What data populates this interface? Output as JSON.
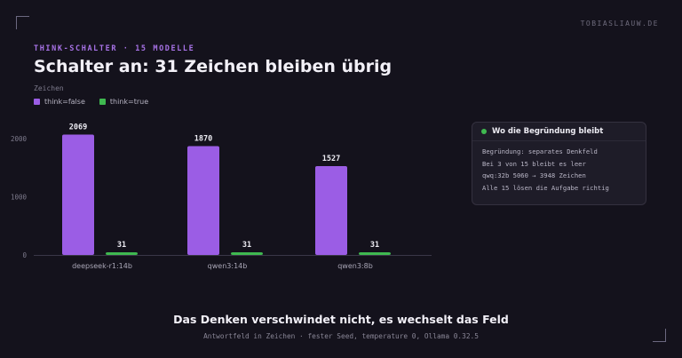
{
  "site": "TOBIASLIAUW.DE",
  "kicker": "THINK-SCHALTER · 15 MODELLE",
  "title": "Schalter an: 31 Zeichen bleiben übrig",
  "colors": {
    "purple": "#9b5de5",
    "green": "#3fb950",
    "background": "#14121c"
  },
  "chart_data": {
    "type": "bar",
    "ylabel": "Zeichen",
    "categories": [
      "deepseek-r1:14b",
      "qwen3:14b",
      "qwen3:8b"
    ],
    "series": [
      {
        "name": "think=false",
        "values": [
          2069,
          1870,
          1527
        ],
        "labels": [
          "2069",
          "1870",
          "1527"
        ],
        "color": "#9b5de5"
      },
      {
        "name": "think=true",
        "values": [
          31,
          31,
          31
        ],
        "labels": [
          "31",
          "31",
          "31"
        ],
        "color": "#3fb950"
      }
    ],
    "yticks": [
      0,
      1000,
      2000
    ],
    "ytick_labels": [
      "0",
      "1000",
      "2000"
    ],
    "ylim": [
      0,
      2350
    ],
    "grid": false,
    "legend": "top-left"
  },
  "info": {
    "title": "Wo die Begründung bleibt",
    "lines": [
      "Begründung: separates Denkfeld",
      "Bei 3 von 15 bleibt es leer",
      "qwq:32b 5060 → 3948 Zeichen",
      "Alle 15 lösen die Aufgabe richtig"
    ]
  },
  "footer": {
    "title": "Das Denken verschwindet nicht, es wechselt das Feld",
    "subtitle": "Antwortfeld in Zeichen · fester Seed, temperature 0, Ollama 0.32.5"
  }
}
